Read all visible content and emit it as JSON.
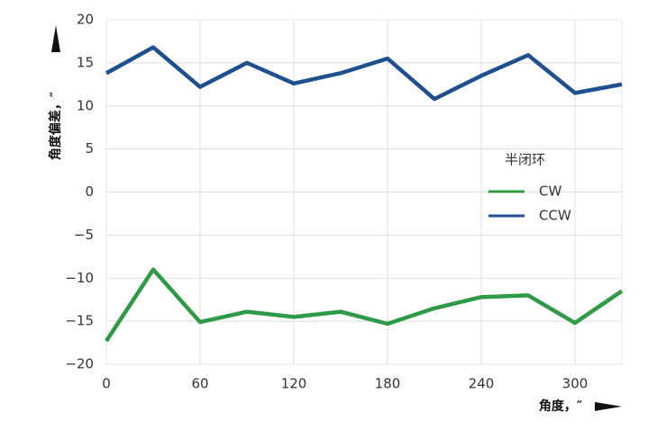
{
  "chart_data": {
    "type": "line",
    "x_label": "角度，″",
    "y_label": "角度偏差，″",
    "x": [
      0,
      30,
      60,
      90,
      120,
      150,
      180,
      210,
      240,
      270,
      300,
      330
    ],
    "series": [
      {
        "name": "CW",
        "color": "#2e9a48",
        "values": [
          -17.3,
          -9.0,
          -15.1,
          -13.9,
          -14.5,
          -13.9,
          -15.3,
          -13.5,
          -12.2,
          -12.0,
          -15.2,
          -11.5
        ]
      },
      {
        "name": "CCW",
        "color": "#1f4f8f",
        "values": [
          13.8,
          16.8,
          12.2,
          15.0,
          12.6,
          13.8,
          15.5,
          10.8,
          13.5,
          15.9,
          11.5,
          12.5
        ]
      }
    ],
    "legend_title": "半闭环",
    "xlim": [
      0,
      330
    ],
    "xticks": [
      0,
      60,
      120,
      180,
      240,
      300
    ],
    "ylim": [
      -20,
      20
    ],
    "yticks": [
      {
        "value": -20,
        "label": "−20"
      },
      {
        "value": -15,
        "label": "−15"
      },
      {
        "value": -10,
        "label": "−10"
      },
      {
        "value": -5,
        "label": "−5"
      },
      0,
      5,
      10,
      15,
      20
    ],
    "grid": true
  }
}
